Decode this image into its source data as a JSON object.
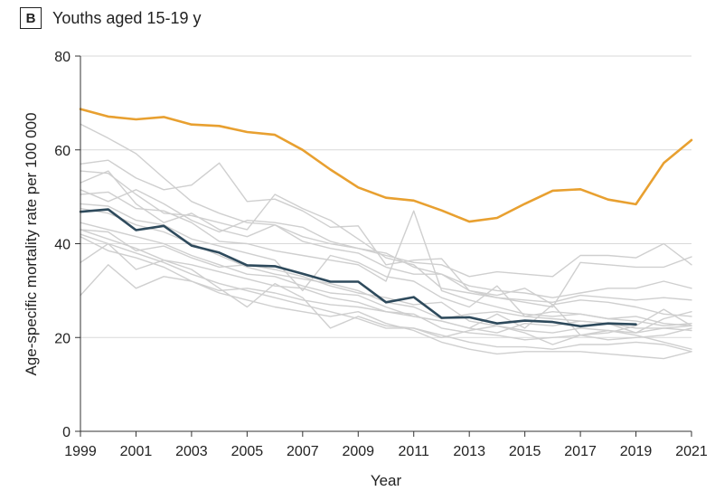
{
  "panel": {
    "letter": "B",
    "title": "Youths aged 15-19 y"
  },
  "chart_data": {
    "type": "line",
    "title": "Youths aged 15-19 y",
    "xlabel": "Year",
    "ylabel": "Age-specific mortality rate per 100 000",
    "xlim": [
      1999,
      2021
    ],
    "ylim": [
      0,
      80
    ],
    "x_ticks": [
      "1999",
      "2001",
      "2003",
      "2005",
      "2007",
      "2009",
      "2011",
      "2013",
      "2015",
      "2017",
      "2019",
      "2021"
    ],
    "y_ticks": [
      "0",
      "20",
      "40",
      "60",
      "80"
    ],
    "grid": "horizontal",
    "colors": {
      "highlight_orange": "#e8a030",
      "highlight_dark": "#2e4a5c",
      "background_lines": "#cfcfcf",
      "grid": "#d9d9d9"
    },
    "series": [
      {
        "role": "highlight-orange",
        "x": [
          1999,
          2000,
          2001,
          2002,
          2003,
          2004,
          2005,
          2006,
          2007,
          2008,
          2009,
          2010,
          2011,
          2012,
          2013,
          2014,
          2015,
          2016,
          2017,
          2018,
          2019,
          2020,
          2021
        ],
        "values": [
          68.7,
          67.1,
          66.5,
          67.0,
          65.4,
          65.1,
          63.8,
          63.2,
          60.0,
          55.8,
          52.0,
          49.8,
          49.2,
          47.1,
          44.7,
          45.5,
          48.5,
          51.3,
          51.6,
          49.4,
          48.4,
          57.2,
          62.1
        ]
      },
      {
        "role": "highlight-dark",
        "x": [
          1999,
          2000,
          2001,
          2002,
          2003,
          2004,
          2005,
          2006,
          2007,
          2008,
          2009,
          2010,
          2011,
          2012,
          2013,
          2014,
          2015,
          2016,
          2017,
          2018,
          2019
        ],
        "values": [
          46.8,
          47.3,
          42.9,
          43.8,
          39.6,
          38.1,
          35.4,
          35.2,
          33.6,
          31.9,
          31.9,
          27.5,
          28.6,
          24.2,
          24.3,
          23.0,
          23.6,
          23.3,
          22.4,
          23.0,
          22.8
        ]
      },
      {
        "role": "background",
        "x": [
          1999,
          2000,
          2001,
          2002,
          2003,
          2004,
          2005,
          2006,
          2007,
          2008,
          2009,
          2010,
          2011,
          2012,
          2013,
          2014,
          2015,
          2016,
          2017,
          2018,
          2019,
          2020,
          2021
        ],
        "values": [
          65.5,
          62.5,
          59.2,
          54.0,
          49.0,
          46.5,
          44.5,
          44.0,
          41.5,
          40.0,
          39.0,
          37.5,
          36.0,
          35.5,
          33.0,
          34.0,
          33.5,
          33.0,
          37.5,
          37.5,
          37.0,
          40.0,
          35.5
        ]
      },
      {
        "role": "background",
        "x": [
          1999,
          2000,
          2001,
          2002,
          2003,
          2004,
          2005,
          2006,
          2007,
          2008,
          2009,
          2010,
          2011,
          2012,
          2013,
          2014,
          2015,
          2016,
          2017,
          2018,
          2019,
          2020,
          2021
        ],
        "values": [
          57.0,
          57.8,
          54.0,
          51.5,
          52.5,
          57.2,
          49.0,
          49.5,
          47.0,
          43.5,
          43.8,
          35.5,
          36.5,
          36.8,
          30.0,
          28.5,
          27.5,
          26.5,
          36.0,
          35.5,
          35.0,
          35.0,
          37.2
        ]
      },
      {
        "role": "background",
        "x": [
          1999,
          2000,
          2001,
          2002,
          2003,
          2004,
          2005,
          2006,
          2007,
          2008,
          2009,
          2010,
          2011,
          2012,
          2013,
          2014,
          2015,
          2016,
          2017,
          2018,
          2019,
          2020,
          2021
        ],
        "values": [
          55.5,
          55.0,
          50.5,
          46.5,
          46.0,
          44.5,
          43.0,
          50.5,
          47.5,
          45.0,
          41.0,
          37.0,
          35.5,
          30.5,
          29.5,
          28.5,
          28.0,
          27.5,
          29.0,
          28.5,
          28.0,
          28.5,
          28.0
        ]
      },
      {
        "role": "background",
        "x": [
          1999,
          2000,
          2001,
          2002,
          2003,
          2004,
          2005,
          2006,
          2007,
          2008,
          2009,
          2010,
          2011,
          2012,
          2013,
          2014,
          2015,
          2016,
          2017,
          2018,
          2019,
          2020,
          2021
        ],
        "values": [
          51.5,
          49.0,
          51.5,
          48.5,
          45.0,
          42.5,
          45.0,
          44.5,
          43.5,
          40.5,
          39.0,
          38.0,
          35.0,
          33.5,
          30.0,
          29.0,
          30.5,
          27.0,
          28.0,
          27.5,
          26.5,
          25.0,
          24.5
        ]
      },
      {
        "role": "background",
        "x": [
          1999,
          2000,
          2001,
          2002,
          2003,
          2004,
          2005,
          2006,
          2007,
          2008,
          2009,
          2010,
          2011,
          2012,
          2013,
          2014,
          2015,
          2016,
          2017,
          2018,
          2019,
          2020,
          2021
        ],
        "values": [
          50.5,
          51.0,
          47.5,
          47.0,
          44.5,
          40.5,
          40.0,
          38.5,
          37.5,
          36.5,
          35.5,
          32.0,
          47.0,
          30.0,
          28.0,
          26.5,
          25.0,
          24.5,
          25.0,
          24.0,
          24.5,
          23.0,
          22.5
        ]
      },
      {
        "role": "background",
        "x": [
          1999,
          2000,
          2001,
          2002,
          2003,
          2004,
          2005,
          2006,
          2007,
          2008,
          2009,
          2010,
          2011,
          2012,
          2013,
          2014,
          2015,
          2016,
          2017,
          2018,
          2019,
          2020,
          2021
        ],
        "values": [
          48.5,
          48.0,
          45.0,
          44.0,
          41.0,
          39.5,
          38.0,
          36.5,
          30.0,
          37.5,
          36.0,
          33.0,
          32.0,
          28.5,
          26.5,
          31.0,
          24.5,
          24.0,
          23.5,
          23.0,
          21.0,
          22.0,
          21.5
        ]
      },
      {
        "role": "background",
        "x": [
          1999,
          2000,
          2001,
          2002,
          2003,
          2004,
          2005,
          2006,
          2007,
          2008,
          2009,
          2010,
          2011,
          2012,
          2013,
          2014,
          2015,
          2016,
          2017,
          2018,
          2019,
          2020,
          2021
        ],
        "values": [
          44.5,
          43.0,
          41.5,
          40.0,
          37.5,
          35.5,
          33.5,
          33.0,
          31.0,
          29.5,
          29.0,
          26.5,
          24.5,
          23.5,
          22.0,
          25.0,
          22.0,
          27.0,
          20.5,
          21.0,
          22.5,
          26.0,
          22.5
        ]
      },
      {
        "role": "background",
        "x": [
          1999,
          2000,
          2001,
          2002,
          2003,
          2004,
          2005,
          2006,
          2007,
          2008,
          2009,
          2010,
          2011,
          2012,
          2013,
          2014,
          2015,
          2016,
          2017,
          2018,
          2019,
          2020,
          2021
        ],
        "values": [
          43.0,
          41.0,
          39.0,
          36.5,
          35.5,
          34.0,
          32.5,
          31.0,
          30.5,
          28.5,
          27.5,
          25.5,
          25.0,
          22.0,
          21.0,
          20.5,
          19.5,
          20.0,
          20.5,
          21.5,
          20.5,
          19.0,
          17.5
        ]
      },
      {
        "role": "background",
        "x": [
          1999,
          2000,
          2001,
          2002,
          2003,
          2004,
          2005,
          2006,
          2007,
          2008,
          2009,
          2010,
          2011,
          2012,
          2013,
          2014,
          2015,
          2016,
          2017,
          2018,
          2019,
          2020,
          2021
        ],
        "values": [
          42.0,
          40.0,
          38.0,
          36.0,
          33.5,
          31.5,
          30.0,
          28.5,
          27.0,
          25.5,
          24.0,
          22.0,
          22.0,
          20.5,
          19.0,
          18.0,
          18.0,
          17.5,
          18.5,
          18.5,
          19.0,
          18.5,
          17.0
        ]
      },
      {
        "role": "background",
        "x": [
          1999,
          2000,
          2001,
          2002,
          2003,
          2004,
          2005,
          2006,
          2007,
          2008,
          2009,
          2010,
          2011,
          2012,
          2013,
          2014,
          2015,
          2016,
          2017,
          2018,
          2019,
          2020,
          2021
        ],
        "values": [
          41.5,
          38.5,
          37.0,
          35.0,
          32.0,
          29.5,
          28.0,
          26.5,
          25.5,
          24.5,
          25.5,
          23.0,
          21.5,
          19.0,
          17.5,
          16.5,
          17.0,
          17.0,
          17.0,
          16.5,
          16.0,
          15.5,
          17.0
        ]
      },
      {
        "role": "background",
        "x": [
          1999,
          2000,
          2001,
          2002,
          2003,
          2004,
          2005,
          2006,
          2007,
          2008,
          2009,
          2010,
          2011,
          2012,
          2013,
          2014,
          2015,
          2016,
          2017,
          2018,
          2019,
          2020,
          2021
        ],
        "values": [
          36.0,
          40.0,
          34.5,
          36.5,
          34.5,
          30.5,
          26.5,
          31.5,
          28.5,
          22.0,
          24.5,
          22.5,
          22.0,
          20.0,
          21.5,
          22.5,
          21.0,
          18.5,
          20.5,
          19.5,
          20.0,
          20.5,
          22.0
        ]
      },
      {
        "role": "background",
        "x": [
          1999,
          2000,
          2001,
          2002,
          2003,
          2004,
          2005,
          2006,
          2007,
          2008,
          2009,
          2010,
          2011,
          2012,
          2013,
          2014,
          2015,
          2016,
          2017,
          2018,
          2019,
          2020,
          2021
        ],
        "values": [
          29.0,
          35.5,
          30.5,
          33.0,
          32.0,
          30.0,
          30.5,
          29.5,
          28.0,
          27.0,
          26.5,
          25.5,
          24.5,
          23.5,
          22.0,
          21.0,
          23.0,
          22.5,
          23.5,
          23.0,
          22.0,
          22.0,
          22.5
        ]
      },
      {
        "role": "background",
        "x": [
          1999,
          2000,
          2001,
          2002,
          2003,
          2004,
          2005,
          2006,
          2007,
          2008,
          2009,
          2010,
          2011,
          2012,
          2013,
          2014,
          2015,
          2016,
          2017,
          2018,
          2019,
          2020,
          2021
        ],
        "values": [
          43.0,
          42.5,
          38.5,
          39.5,
          37.0,
          35.0,
          35.5,
          34.5,
          33.0,
          31.0,
          29.5,
          28.5,
          27.0,
          27.5,
          23.5,
          22.5,
          21.5,
          21.0,
          22.0,
          21.5,
          21.0,
          24.0,
          25.5
        ]
      },
      {
        "role": "background",
        "x": [
          1999,
          2000,
          2001,
          2002,
          2003,
          2004,
          2005,
          2006,
          2007,
          2008,
          2009,
          2010,
          2011,
          2012,
          2013,
          2014,
          2015,
          2016,
          2017,
          2018,
          2019,
          2020,
          2021
        ],
        "values": [
          53.0,
          55.5,
          48.5,
          44.5,
          46.5,
          43.0,
          41.5,
          44.0,
          40.5,
          39.0,
          38.0,
          35.0,
          33.5,
          33.5,
          31.0,
          30.0,
          29.5,
          28.5,
          29.5,
          30.5,
          30.5,
          32.0,
          30.5
        ]
      },
      {
        "role": "background",
        "x": [
          1999,
          2000,
          2001,
          2002,
          2003,
          2004,
          2005,
          2006,
          2007,
          2008,
          2009,
          2010,
          2011,
          2012,
          2013,
          2014,
          2015,
          2016,
          2017,
          2018,
          2019,
          2020,
          2021
        ],
        "values": [
          47.5,
          46.5,
          44.0,
          42.5,
          40.0,
          37.5,
          35.0,
          33.5,
          32.5,
          31.5,
          30.0,
          27.5,
          26.5,
          24.0,
          25.0,
          25.5,
          24.5,
          25.5,
          25.0,
          24.0,
          23.5,
          22.5,
          23.0
        ]
      }
    ]
  }
}
